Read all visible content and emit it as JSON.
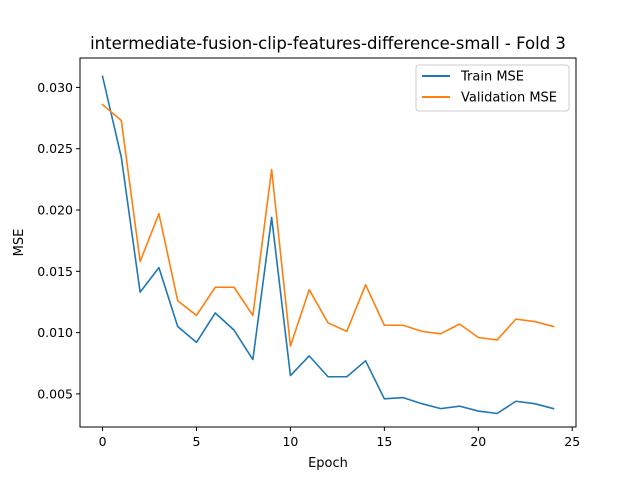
{
  "chart_data": {
    "type": "line",
    "title": "intermediate-fusion-clip-features-difference-small - Fold 3",
    "xlabel": "Epoch",
    "ylabel": "MSE",
    "xlim": [
      -1.2,
      25.2
    ],
    "ylim": [
      0.0023,
      0.0324
    ],
    "x_ticks": [
      0,
      5,
      10,
      15,
      20,
      25
    ],
    "y_ticks": [
      0.005,
      0.01,
      0.015,
      0.02,
      0.025,
      0.03
    ],
    "x_tick_labels": [
      "0",
      "5",
      "10",
      "15",
      "20",
      "25"
    ],
    "y_tick_labels": [
      "0.005",
      "0.010",
      "0.015",
      "0.020",
      "0.025",
      "0.030"
    ],
    "grid": false,
    "legend_position": "top-right",
    "x": [
      0,
      1,
      2,
      3,
      4,
      5,
      6,
      7,
      8,
      9,
      10,
      11,
      12,
      13,
      14,
      15,
      16,
      17,
      18,
      19,
      20,
      21,
      22,
      23,
      24
    ],
    "series": [
      {
        "name": "Train MSE",
        "color": "#1f77b4",
        "values": [
          0.0309,
          0.0243,
          0.0133,
          0.0153,
          0.0105,
          0.0092,
          0.0116,
          0.0102,
          0.0078,
          0.0194,
          0.0065,
          0.0081,
          0.0064,
          0.0064,
          0.0077,
          0.0046,
          0.0047,
          0.0042,
          0.0038,
          0.004,
          0.0036,
          0.0034,
          0.0044,
          0.0042,
          0.0038
        ]
      },
      {
        "name": "Validation MSE",
        "color": "#ff7f0e",
        "values": [
          0.0286,
          0.0273,
          0.0158,
          0.0197,
          0.0126,
          0.0114,
          0.0137,
          0.0137,
          0.0114,
          0.0233,
          0.0089,
          0.0135,
          0.0108,
          0.0101,
          0.0139,
          0.0106,
          0.0106,
          0.0101,
          0.0099,
          0.0107,
          0.0096,
          0.0094,
          0.0111,
          0.0109,
          0.0105
        ]
      }
    ]
  }
}
